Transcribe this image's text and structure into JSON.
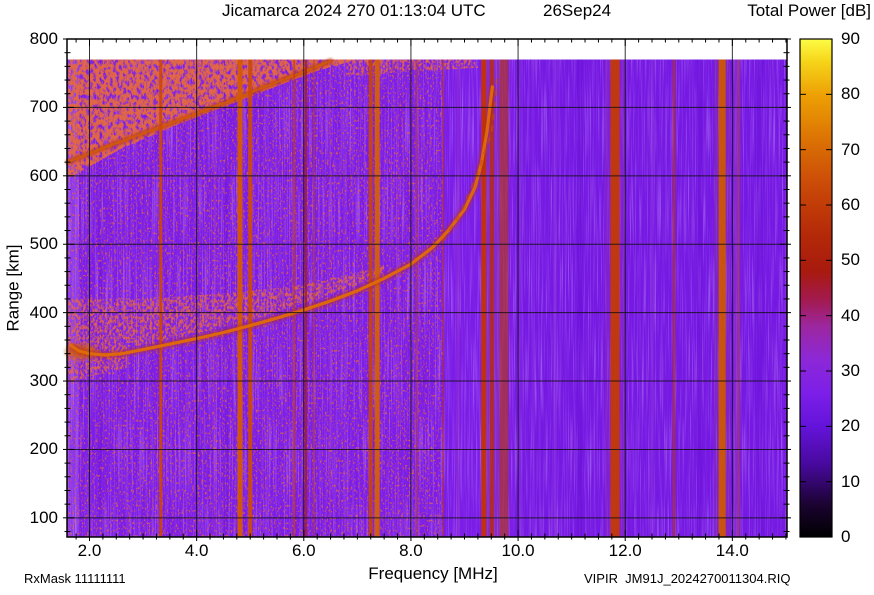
{
  "header": {
    "title": "Jicamarca 2024 270 01:13:04 UTC",
    "date": "26Sep24",
    "colorbar_title": "Total Power [dB]"
  },
  "footer": {
    "rx_mask": "RxMask 11111111",
    "x_axis_label": "Frequency [MHz]",
    "filename": "VIPIR  JM91J_2024270011304.RIQ"
  },
  "y_axis_label": "Range [km]",
  "chart_data": {
    "type": "heatmap",
    "title": "Jicamarca VIPIR ionogram, total power vs frequency and range",
    "x": {
      "label": "Frequency [MHz]",
      "min": 1.58,
      "max": 15.02,
      "minor_step": 0.25,
      "ticks": [
        {
          "v": 2,
          "label": "2.0"
        },
        {
          "v": 4,
          "label": "4.0"
        },
        {
          "v": 6,
          "label": "6.0"
        },
        {
          "v": 8,
          "label": "8.0"
        },
        {
          "v": 10,
          "label": "10.0"
        },
        {
          "v": 12,
          "label": "12.0"
        },
        {
          "v": 14,
          "label": "14.0"
        }
      ]
    },
    "y": {
      "label": "Range [km]",
      "min": 72,
      "max": 800,
      "minor_step": 20,
      "ticks": [
        {
          "v": 100,
          "label": "100"
        },
        {
          "v": 200,
          "label": "200"
        },
        {
          "v": 300,
          "label": "300"
        },
        {
          "v": 400,
          "label": "400"
        },
        {
          "v": 500,
          "label": "500"
        },
        {
          "v": 600,
          "label": "600"
        },
        {
          "v": 700,
          "label": "700"
        },
        {
          "v": 800,
          "label": "800"
        }
      ]
    },
    "z": {
      "label": "Total Power [dB]",
      "min": 0,
      "max": 90,
      "ticks": [
        {
          "v": 0,
          "label": "0"
        },
        {
          "v": 10,
          "label": "10"
        },
        {
          "v": 20,
          "label": "20"
        },
        {
          "v": 30,
          "label": "30"
        },
        {
          "v": 40,
          "label": "40"
        },
        {
          "v": 50,
          "label": "50"
        },
        {
          "v": 60,
          "label": "60"
        },
        {
          "v": 70,
          "label": "70"
        },
        {
          "v": 80,
          "label": "80"
        },
        {
          "v": 90,
          "label": "90"
        }
      ],
      "palette": [
        [
          0,
          "#000000"
        ],
        [
          6,
          "#1c0333"
        ],
        [
          13,
          "#47099c"
        ],
        [
          20,
          "#6413da"
        ],
        [
          26,
          "#7c1fe8"
        ],
        [
          32,
          "#8c28d8"
        ],
        [
          38,
          "#9c27a0"
        ],
        [
          43,
          "#a31a4e"
        ],
        [
          48,
          "#a81a0e"
        ],
        [
          55,
          "#b52a08"
        ],
        [
          63,
          "#c94708"
        ],
        [
          72,
          "#dc7304"
        ],
        [
          80,
          "#eda104"
        ],
        [
          86,
          "#f6d51a"
        ],
        [
          90,
          "#fdfd46"
        ]
      ]
    },
    "background": {
      "color": "#7b1de7",
      "data_top_km": 770,
      "noise_floor_db": 25
    },
    "f_trace": {
      "name": "F-layer O-mode echo trace",
      "foF2_mhz": 9.5,
      "points": [
        [
          1.65,
          352
        ],
        [
          1.8,
          344
        ],
        [
          2.0,
          340
        ],
        [
          2.3,
          338
        ],
        [
          2.6,
          340
        ],
        [
          3.0,
          346
        ],
        [
          3.5,
          354
        ],
        [
          4.0,
          362
        ],
        [
          4.5,
          371
        ],
        [
          5.0,
          381
        ],
        [
          5.5,
          392
        ],
        [
          6.0,
          404
        ],
        [
          6.5,
          417
        ],
        [
          7.0,
          432
        ],
        [
          7.5,
          450
        ],
        [
          8.0,
          471
        ],
        [
          8.4,
          495
        ],
        [
          8.7,
          520
        ],
        [
          9.0,
          551
        ],
        [
          9.2,
          584
        ],
        [
          9.32,
          620
        ],
        [
          9.42,
          665
        ],
        [
          9.48,
          705
        ],
        [
          9.52,
          730
        ]
      ]
    },
    "x_trace_fragments": {
      "name": "faint X-mode / asymptote fragments",
      "points": [
        [
          8.6,
          505
        ],
        [
          8.95,
          548
        ],
        [
          9.25,
          605
        ],
        [
          9.5,
          662
        ],
        [
          9.58,
          710
        ],
        [
          9.6,
          742
        ]
      ]
    },
    "second_hop_band": {
      "name": "second-hop spread echo band",
      "points": [
        [
          1.6,
          620
        ],
        [
          2.2,
          639
        ],
        [
          3.0,
          662
        ],
        [
          3.8,
          685
        ],
        [
          4.6,
          709
        ],
        [
          5.4,
          734
        ],
        [
          6.0,
          752
        ],
        [
          6.5,
          768
        ]
      ]
    },
    "spread_regions": [
      {
        "name": "second-hop-spread-wedge",
        "density": "dense",
        "poly": [
          [
            1.6,
            596
          ],
          [
            2.6,
            640
          ],
          [
            3.8,
            680
          ],
          [
            5.0,
            716
          ],
          [
            6.2,
            752
          ],
          [
            7.0,
            770
          ],
          [
            1.6,
            770
          ]
        ]
      },
      {
        "name": "spread-top-sliver",
        "density": "medium",
        "poly": [
          [
            6.8,
            746
          ],
          [
            9.25,
            758
          ],
          [
            9.25,
            770
          ],
          [
            6.8,
            770
          ]
        ]
      },
      {
        "name": "spread-above-F-trace",
        "density": "medium",
        "poly": [
          [
            1.6,
            350
          ],
          [
            3.0,
            352
          ],
          [
            5.0,
            388
          ],
          [
            7.0,
            440
          ],
          [
            7.5,
            456
          ],
          [
            7.5,
            468
          ],
          [
            6.0,
            440
          ],
          [
            4.5,
            428
          ],
          [
            3.0,
            420
          ],
          [
            1.6,
            420
          ]
        ]
      },
      {
        "name": "F-trace-leading-fuzz",
        "density": "medium",
        "poly": [
          [
            1.6,
            298
          ],
          [
            2.7,
            320
          ],
          [
            2.7,
            352
          ],
          [
            1.6,
            352
          ]
        ]
      },
      {
        "name": "background-speckle",
        "density": "sparse",
        "poly": [
          [
            1.58,
            72
          ],
          [
            8.6,
            72
          ],
          [
            8.6,
            770
          ],
          [
            1.58,
            770
          ]
        ]
      }
    ],
    "overlays": [
      {
        "f1": 9.95,
        "f2": 15.02,
        "color": "#5f0cd6",
        "op": 0.22
      },
      {
        "f1": 1.58,
        "f2": 1.8,
        "color": "#a055f0",
        "op": 0.5
      }
    ],
    "tint_bands": [
      {
        "f": 9.55,
        "w": 26,
        "color": "#9a3a9a",
        "op": 0.4
      },
      {
        "f": 11.81,
        "w": 20,
        "color": "#8e2ab8",
        "op": 0.45
      },
      {
        "f": 13.81,
        "w": 16,
        "color": "#92309c",
        "op": 0.4
      }
    ],
    "rfi_stripes": [
      {
        "f": 3.33,
        "w": 3,
        "color": "#cc4706",
        "op": 0.9
      },
      {
        "f": 4.81,
        "w": 5,
        "color": "#d45a04",
        "op": 0.95
      },
      {
        "f": 5.0,
        "w": 4,
        "color": "#cc4d06",
        "op": 0.9
      },
      {
        "f": 5.82,
        "w": 2,
        "color": "#c23d0e",
        "op": 0.7
      },
      {
        "f": 6.04,
        "w": 2,
        "color": "#a82012",
        "op": 0.85
      },
      {
        "f": 6.19,
        "w": 2,
        "color": "#b04028",
        "op": 0.5
      },
      {
        "f": 7.25,
        "w": 4,
        "color": "#c64408",
        "op": 0.9
      },
      {
        "f": 7.37,
        "w": 5,
        "color": "#d45f04",
        "op": 0.95
      },
      {
        "f": 8.11,
        "w": 3,
        "color": "#a63a66",
        "op": 0.55
      },
      {
        "f": 8.6,
        "w": 2,
        "color": "#b03228",
        "op": 0.5
      },
      {
        "f": 9.36,
        "w": 5,
        "color": "#c23208",
        "op": 0.95
      },
      {
        "f": 9.51,
        "w": 4,
        "color": "#b42c10",
        "op": 0.85
      },
      {
        "f": 9.74,
        "w": 9,
        "color": "#b13318",
        "op": 0.6
      },
      {
        "f": 11.81,
        "w": 9,
        "color": "#c23a04",
        "op": 0.95
      },
      {
        "f": 12.91,
        "w": 3,
        "color": "#b03228",
        "op": 0.6
      },
      {
        "f": 13.81,
        "w": 7,
        "color": "#cc5604",
        "op": 0.95
      },
      {
        "f": 14.12,
        "w": 3,
        "color": "#a63a58",
        "op": 0.5
      }
    ],
    "faint_stripes": [
      {
        "f": 2.2,
        "w": 4,
        "color": "#6a10d8",
        "op": 0.35
      },
      {
        "f": 2.7,
        "w": 2,
        "color": "#9138ea",
        "op": 0.5
      },
      {
        "f": 3.82,
        "w": 2,
        "color": "#8e32e8",
        "op": 0.45
      },
      {
        "f": 4.34,
        "w": 3,
        "color": "#a33ad0",
        "op": 0.4
      },
      {
        "f": 4.55,
        "w": 4,
        "color": "#6a10d8",
        "op": 0.3
      },
      {
        "f": 5.33,
        "w": 2,
        "color": "#9138ea",
        "op": 0.45
      },
      {
        "f": 6.49,
        "w": 2,
        "color": "#a33ad0",
        "op": 0.4
      },
      {
        "f": 6.77,
        "w": 3,
        "color": "#9138ea",
        "op": 0.45
      },
      {
        "f": 7.76,
        "w": 2,
        "color": "#a33ad0",
        "op": 0.4
      },
      {
        "f": 8.88,
        "w": 3,
        "color": "#9a35c8",
        "op": 0.45
      },
      {
        "f": 10.05,
        "w": 4,
        "color": "#8e32e8",
        "op": 0.35
      },
      {
        "f": 10.28,
        "w": 3,
        "color": "#8e32e8",
        "op": 0.4
      },
      {
        "f": 10.69,
        "w": 3,
        "color": "#9238e0",
        "op": 0.55
      },
      {
        "f": 11.15,
        "w": 6,
        "color": "#6a10d8",
        "op": 0.5
      },
      {
        "f": 12.5,
        "w": 3,
        "color": "#9238e0",
        "op": 0.45
      },
      {
        "f": 13.39,
        "w": 5,
        "color": "#6a10d8",
        "op": 0.45
      },
      {
        "f": 14.08,
        "w": 5,
        "color": "#9a35c8",
        "op": 0.5
      },
      {
        "f": 14.51,
        "w": 9,
        "color": "#6c12da",
        "op": 0.4
      }
    ]
  }
}
